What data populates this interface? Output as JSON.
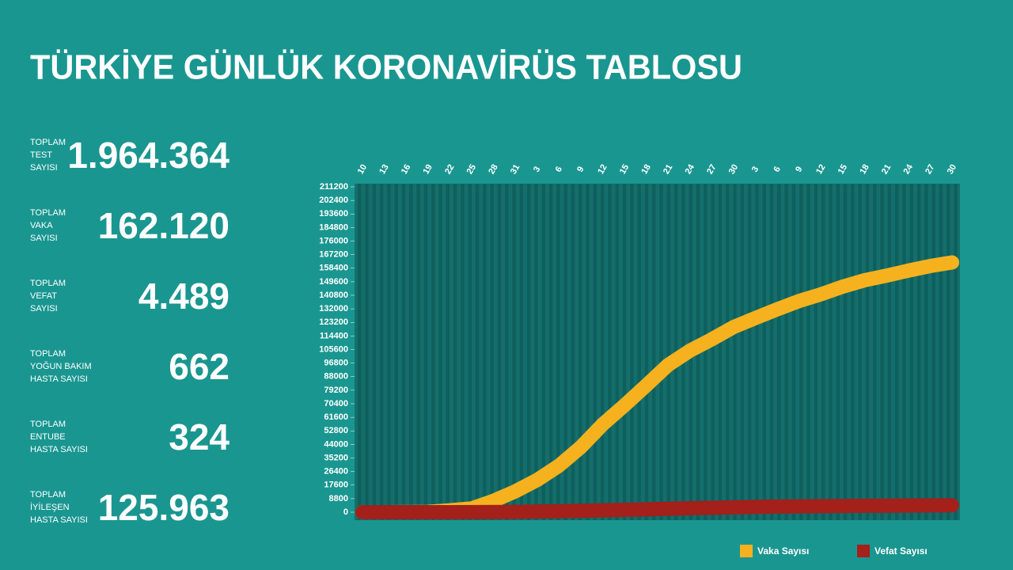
{
  "chart_data": {
    "type": "line",
    "title": "TÜRKİYE GÜNLÜK KORONAVİRÜS TABLOSU",
    "stats": [
      {
        "label": [
          "TOPLAM",
          "TEST",
          "SAYISI"
        ],
        "value": "1.964.364"
      },
      {
        "label": [
          "TOPLAM",
          "VAKA",
          "SAYISI"
        ],
        "value": "162.120"
      },
      {
        "label": [
          "TOPLAM",
          "VEFAT",
          "SAYISI"
        ],
        "value": "4.489"
      },
      {
        "label": [
          "TOPLAM",
          "YOĞUN BAKIM",
          "HASTA SAYISI"
        ],
        "value": "662"
      },
      {
        "label": [
          "TOPLAM",
          "ENTUBE",
          "HASTA SAYISI"
        ],
        "value": "324"
      },
      {
        "label": [
          "TOPLAM",
          "İYİLEŞEN",
          "HASTA SAYISI"
        ],
        "value": "125.963"
      }
    ],
    "categories": [
      "10",
      "13",
      "16",
      "19",
      "22",
      "25",
      "28",
      "31",
      "3",
      "6",
      "9",
      "12",
      "15",
      "18",
      "21",
      "24",
      "27",
      "30",
      "3",
      "6",
      "9",
      "12",
      "15",
      "18",
      "21",
      "24",
      "27",
      "30"
    ],
    "series": [
      {
        "name": "Vaka Sayısı",
        "color": "#f5b21e",
        "values": [
          0,
          5,
          47,
          191,
          1236,
          2433,
          7402,
          13531,
          20921,
          30217,
          42282,
          56956,
          69392,
          82329,
          95591,
          104912,
          112261,
          120204,
          126045,
          131744,
          137115,
          141475,
          146457,
          150593,
          153548,
          156827,
          159797,
          162120
        ]
      },
      {
        "name": "Vefat Sayısı",
        "color": "#a3201b",
        "values": [
          0,
          0,
          0,
          3,
          30,
          59,
          108,
          214,
          425,
          649,
          908,
          1198,
          1518,
          1890,
          2259,
          2600,
          2900,
          3174,
          3461,
          3641,
          3786,
          3894,
          4055,
          4171,
          4249,
          4340,
          4431,
          4489
        ]
      }
    ],
    "ylim": [
      0,
      211200
    ],
    "yticks": [
      0,
      8800,
      17600,
      26400,
      35200,
      44000,
      52800,
      61600,
      70400,
      79200,
      88000,
      96800,
      105600,
      114400,
      123200,
      132000,
      140800,
      149600,
      158400,
      167200,
      176000,
      184800,
      193600,
      202400,
      211200
    ],
    "legend": "bottom-right"
  }
}
